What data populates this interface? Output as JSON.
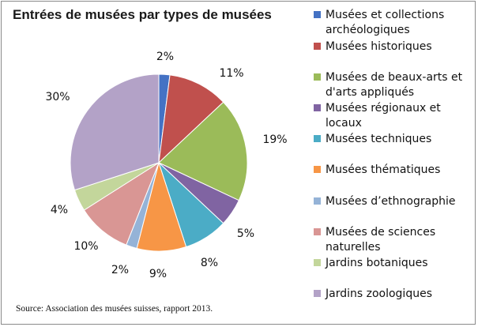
{
  "chart_data": {
    "type": "pie",
    "title": "Entrées de musées par types de musées",
    "source": "Source: Association des musées suisses, rapport 2013.",
    "categories": [
      "Musées et collections archéologiques",
      "Musées historiques",
      "Musées de beaux-arts et d'arts appliqués",
      "Musées régionaux et locaux",
      "Musées techniques",
      "Musées thématiques",
      "Musées d’ethnographie",
      "Musées de sciences naturelles",
      "Jardins botaniques",
      "Jardins zoologiques"
    ],
    "values": [
      2,
      11,
      19,
      5,
      8,
      9,
      2,
      10,
      4,
      30
    ],
    "data_labels": [
      "2%",
      "11%",
      "19%",
      "5%",
      "8%",
      "9%",
      "2%",
      "10%",
      "4%",
      "30%"
    ],
    "colors": [
      "#4472c4",
      "#c0504d",
      "#9bbb59",
      "#8064a2",
      "#4bacc6",
      "#f79646",
      "#95b3d7",
      "#d99694",
      "#c3d69b",
      "#b3a2c7"
    ],
    "legend_position": "right"
  }
}
